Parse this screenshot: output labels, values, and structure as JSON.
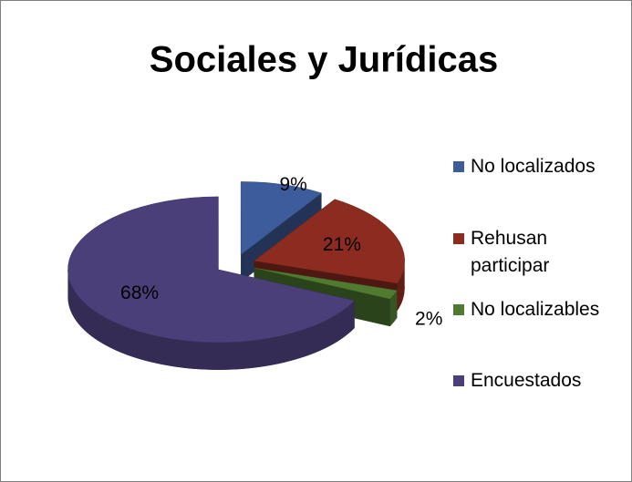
{
  "chart_data": {
    "type": "pie",
    "title": "Sociales y Jurídicas",
    "categories": [
      "No localizados",
      "Rehusan participar",
      "No localizables",
      "Encuestados"
    ],
    "values": [
      9,
      21,
      2,
      68
    ],
    "value_labels": [
      "9%",
      "21%",
      "2%",
      "68%"
    ],
    "colors": [
      "#3d5c9c",
      "#8c2b1f",
      "#4f7a30",
      "#4b3f79"
    ],
    "legend": "right"
  }
}
